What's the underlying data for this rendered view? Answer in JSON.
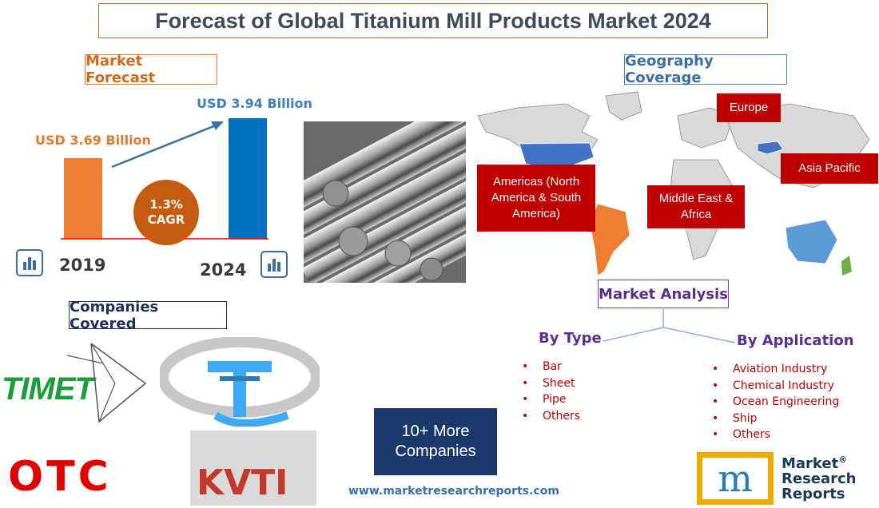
{
  "title": "Forecast of Global Titanium Mill Products Market 2024",
  "market_forecast": {
    "label": "Market Forecast",
    "start": {
      "year": "2019",
      "value_label": "USD 3.69 Billion",
      "value": 3.69
    },
    "end": {
      "year": "2024",
      "value_label": "USD 3.94 Billion",
      "value": 3.94
    },
    "cagr_value": "1.3%",
    "cagr_label": "CAGR",
    "colors": {
      "start_bar": "#ed7d31",
      "end_bar": "#0070c0",
      "cagr_circle": "#c55a11",
      "axis": "#ff0000"
    }
  },
  "geography": {
    "label": "Geography Coverage",
    "regions": [
      {
        "id": "americas",
        "name": "Americas (North America & South America)"
      },
      {
        "id": "europe",
        "name": "Europe"
      },
      {
        "id": "asia_pacific",
        "name": "Asia Pacific"
      },
      {
        "id": "mea",
        "name": "Middle East & Africa"
      }
    ],
    "colors": {
      "region_box": "#c00000",
      "north_america": "#4472c4",
      "south_america": "#ed7d31",
      "asia_highlight": "#4472c4",
      "oceania": "#5b9bd5",
      "nz": "#70ad47",
      "map_base": "#d9d9d9"
    }
  },
  "companies": {
    "label": "Companies Covered",
    "logos": [
      "TIMET",
      "OTC",
      "KVTI"
    ],
    "more_line1": "10+ More",
    "more_line2": "Companies"
  },
  "market_analysis": {
    "label": "Market Analysis",
    "by_type": {
      "heading": "By Type",
      "items": [
        "Bar",
        "Sheet",
        "Pipe",
        "Others"
      ]
    },
    "by_application": {
      "heading": "By Application",
      "items": [
        "Aviation Industry",
        "Chemical Industry",
        "Ocean Engineering",
        "Ship",
        "Others"
      ]
    }
  },
  "website": "www.marketresearchreports.com",
  "brand": {
    "line1": "Market",
    "line2": "Research",
    "line3": "Reports",
    "reg": "®",
    "mark": "m"
  },
  "icons": [
    "bar-chart-icon",
    "titanium-bars-photo",
    "world-map"
  ]
}
